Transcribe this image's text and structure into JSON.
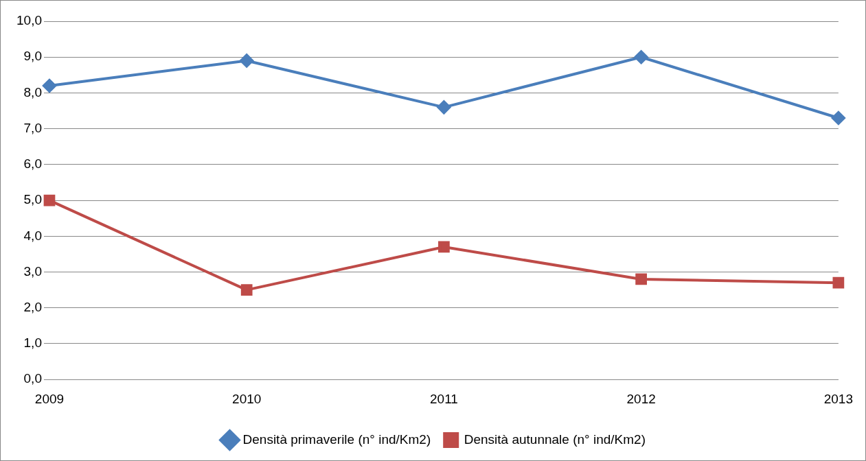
{
  "chart_data": {
    "type": "line",
    "categories": [
      "2009",
      "2010",
      "2011",
      "2012",
      "2013"
    ],
    "series": [
      {
        "name": "Densità primaverile (n° ind/Km2)",
        "color": "#4a7ebb",
        "marker": "diamond",
        "values": [
          8.2,
          8.9,
          7.6,
          9.0,
          7.3
        ]
      },
      {
        "name": "Densità autunnale (n° ind/Km2)",
        "color": "#be4b48",
        "marker": "square",
        "values": [
          5.0,
          2.5,
          3.7,
          2.8,
          2.7
        ]
      }
    ],
    "ylim": [
      0,
      10
    ],
    "yticks": [
      {
        "value": 0,
        "label": "0,0"
      },
      {
        "value": 1,
        "label": "1,0"
      },
      {
        "value": 2,
        "label": "2,0"
      },
      {
        "value": 3,
        "label": "3,0"
      },
      {
        "value": 4,
        "label": "4,0"
      },
      {
        "value": 5,
        "label": "5,0"
      },
      {
        "value": 6,
        "label": "6,0"
      },
      {
        "value": 7,
        "label": "7,0"
      },
      {
        "value": 8,
        "label": "8,0"
      },
      {
        "value": 9,
        "label": "9,0"
      },
      {
        "value": 10,
        "label": "10,0"
      }
    ],
    "grid": "y",
    "legend": "bottom",
    "line_style": "solid"
  }
}
